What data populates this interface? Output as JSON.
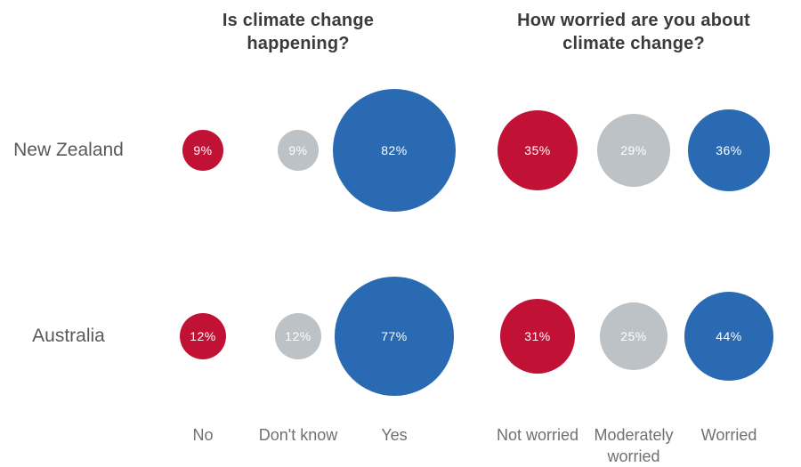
{
  "chart_data": {
    "type": "bubble",
    "title": "",
    "value_suffix": "%",
    "legend": "none",
    "grid": false,
    "background": "#ffffff",
    "rows": [
      "New Zealand",
      "Australia"
    ],
    "questions": [
      {
        "title": "Is climate change happening?",
        "categories": [
          {
            "label": "No",
            "color": "#c11236"
          },
          {
            "label": "Don't know",
            "color": "#bdc2c7"
          },
          {
            "label": "Yes",
            "color": "#2a6ab3"
          }
        ],
        "series": [
          {
            "name": "New Zealand",
            "values": [
              9,
              9,
              82
            ]
          },
          {
            "name": "Australia",
            "values": [
              12,
              12,
              77
            ]
          }
        ]
      },
      {
        "title": "How worried are you about climate change?",
        "categories": [
          {
            "label": "Not worried",
            "color": "#c11236"
          },
          {
            "label": "Moderately worried",
            "color": "#bdc2c7"
          },
          {
            "label": "Worried",
            "color": "#2a6ab3"
          }
        ],
        "series": [
          {
            "name": "New Zealand",
            "values": [
              35,
              29,
              36
            ]
          },
          {
            "name": "Australia",
            "values": [
              31,
              25,
              44
            ]
          }
        ]
      }
    ],
    "colors": {
      "negative": "#c11236",
      "neutral": "#bdc2c7",
      "positive": "#2a6ab3",
      "title_text": "#3b3b3b",
      "row_label_text": "#58595b",
      "category_label_text": "#6e7072",
      "bubble_value_text": "#ffffff"
    }
  }
}
